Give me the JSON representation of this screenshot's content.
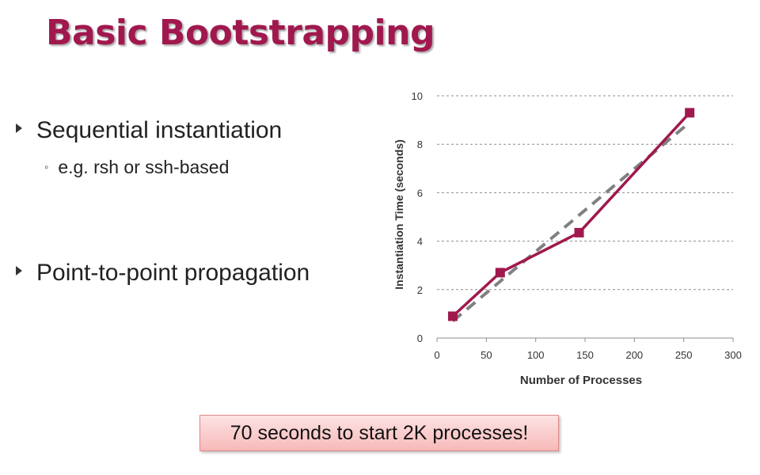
{
  "slide": {
    "title": "Basic Bootstrapping",
    "bullets": [
      {
        "text": "Sequential instantiation",
        "sub": [
          "e.g. rsh or ssh-based"
        ]
      },
      {
        "text": "Point-to-point propagation",
        "sub": []
      }
    ],
    "callout": "70 seconds to start 2K processes!"
  },
  "colors": {
    "title": "#a0184e",
    "series": "#a0184e",
    "trend": "#808080",
    "callout_fill": "#f9c9c9"
  },
  "chart_data": {
    "type": "line",
    "title": "",
    "xlabel": "Number of Processes",
    "ylabel": "Instantiation  Time (seconds)",
    "xlim": [
      0,
      300
    ],
    "ylim": [
      0,
      10
    ],
    "xticks": [
      0,
      50,
      100,
      150,
      200,
      250,
      300
    ],
    "yticks": [
      0,
      2,
      4,
      6,
      8,
      10
    ],
    "grid": "horizontal-dashed",
    "series": [
      {
        "x": [
          16,
          64,
          144,
          256
        ],
        "y": [
          0.9,
          2.7,
          4.35,
          9.3
        ],
        "marker": "square"
      }
    ],
    "trendline": {
      "style": "dashed",
      "x": [
        16,
        256
      ],
      "y": [
        0.7,
        8.9
      ]
    }
  }
}
